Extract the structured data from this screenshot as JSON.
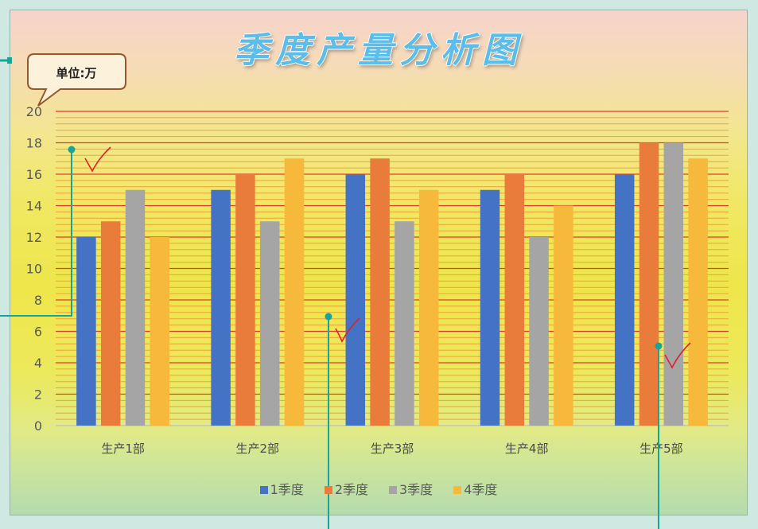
{
  "chart_data": {
    "type": "bar",
    "title": "季度产量分析图",
    "unit_note": "单位:万",
    "categories": [
      "生产1部",
      "生产2部",
      "生产3部",
      "生产4部",
      "生产5部"
    ],
    "series": [
      {
        "name": "1季度",
        "values": [
          12,
          15,
          16,
          15,
          16
        ],
        "color": "#4472C4"
      },
      {
        "name": "2季度",
        "values": [
          13,
          16,
          17,
          16,
          18
        ],
        "color": "#E97C3A"
      },
      {
        "name": "3季度",
        "values": [
          15,
          13,
          13,
          12,
          18
        ],
        "color": "#A5A5A5"
      },
      {
        "name": "4季度",
        "values": [
          12,
          17,
          15,
          14,
          17
        ],
        "color": "#F6B93B"
      }
    ],
    "yticks": [
      0,
      2,
      4,
      6,
      8,
      10,
      12,
      14,
      16,
      18,
      20
    ],
    "ylim": [
      0,
      20
    ],
    "grid": {
      "major": true,
      "minor": true,
      "major_color": "#E3392B",
      "minor_color": "#F2A03A"
    },
    "legend": "bottom"
  },
  "annotation_color": "#17A597",
  "check_mark_color": "#E0202A"
}
